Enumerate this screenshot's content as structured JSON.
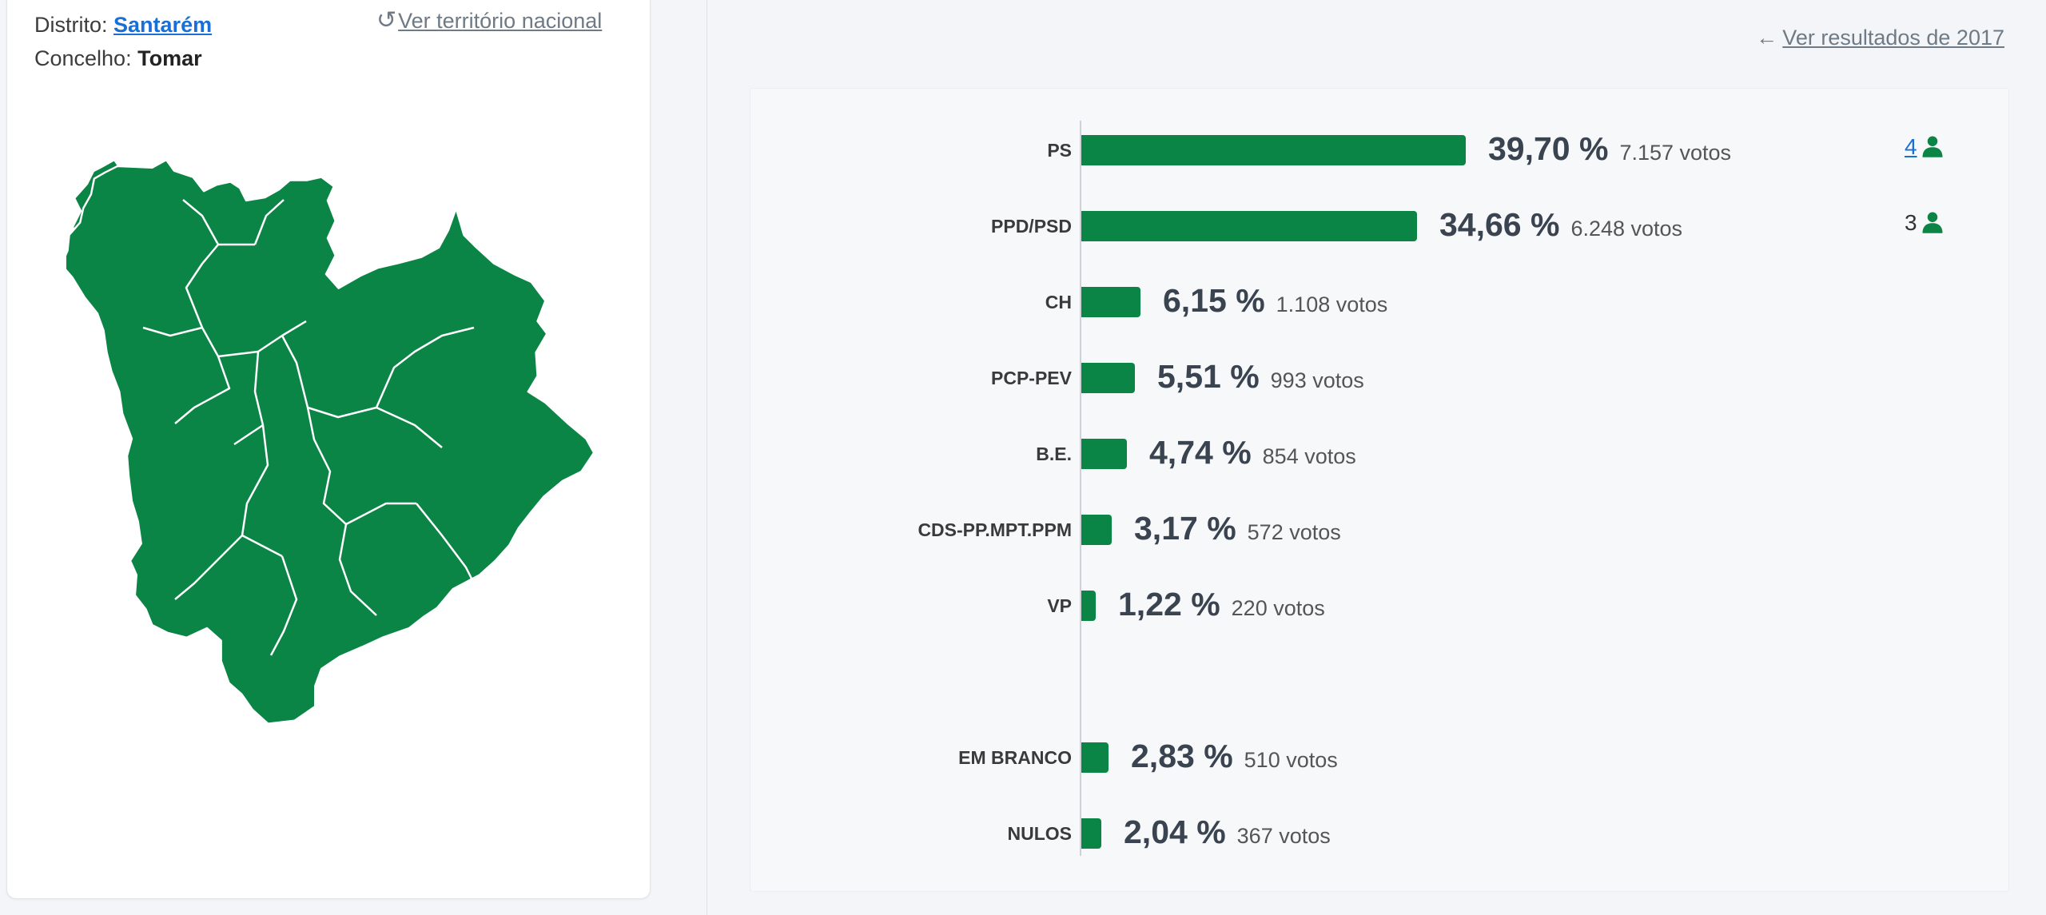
{
  "location": {
    "district_label": "Distrito:",
    "district_value": "Santarém",
    "council_label": "Concelho:",
    "council_value": "Tomar",
    "national_link": "Ver território nacional"
  },
  "prev_results_link": "Ver resultados de 2017",
  "colors": {
    "accent": "#0a8546",
    "link": "#1a6fd6"
  },
  "chart_data": {
    "type": "bar",
    "orientation": "horizontal",
    "categories": [
      "PS",
      "PPD/PSD",
      "CH",
      "PCP-PEV",
      "B.E.",
      "CDS-PP.MPT.PPM",
      "VP",
      "EM BRANCO",
      "NULOS"
    ],
    "values": [
      39.7,
      34.66,
      6.15,
      5.51,
      4.74,
      3.17,
      1.22,
      2.83,
      2.04
    ],
    "pct_labels": [
      "39,70 %",
      "34,66 %",
      "6,15 %",
      "5,51 %",
      "4,74 %",
      "3,17 %",
      "1,22 %",
      "2,83 %",
      "2,04 %"
    ],
    "votes_labels": [
      "7.157 votos",
      "6.248 votos",
      "1.108 votos",
      "993 votos",
      "854 votos",
      "572 votos",
      "220 votos",
      "510 votos",
      "367 votos"
    ],
    "seats": [
      "4",
      "3"
    ],
    "xlim": [
      0,
      100
    ],
    "color": "#0a8546"
  }
}
